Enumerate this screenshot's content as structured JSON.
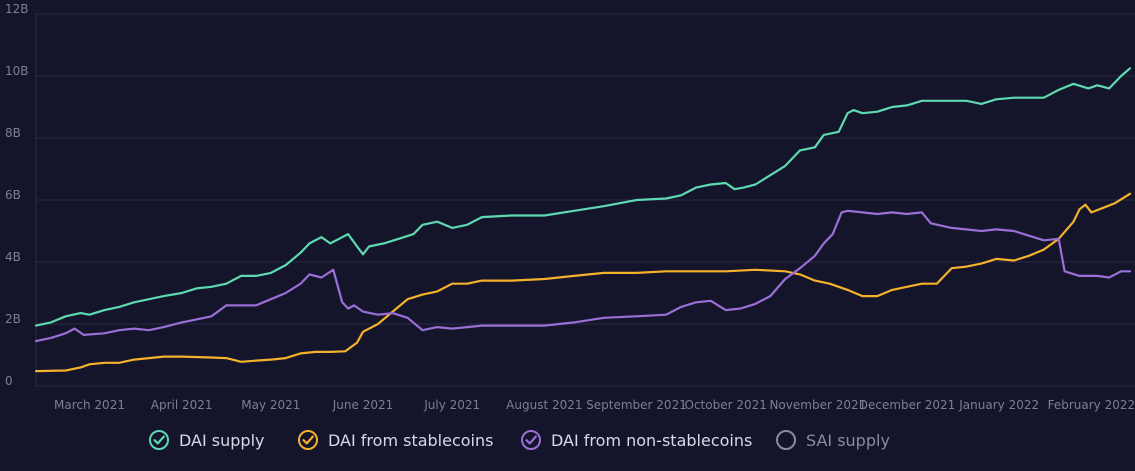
{
  "colors": {
    "background": "#14142b",
    "grid": "#2a2a45",
    "tick": "#7d7d96",
    "dai_supply": "#5fd9b0",
    "dai_stablecoins": "#f4b12c",
    "dai_nonstable": "#9a6fd6",
    "sai_supply": "#8a8aa0"
  },
  "chart_data": {
    "type": "line",
    "title": "",
    "xlabel": "",
    "ylabel": "",
    "x_range": [
      "2021-02-11",
      "2022-02-14"
    ],
    "ylim": [
      0,
      12
    ],
    "y_unit": "B",
    "y_ticks": [
      {
        "value": 0,
        "label": "0"
      },
      {
        "value": 2,
        "label": "2B"
      },
      {
        "value": 4,
        "label": "4B"
      },
      {
        "value": 6,
        "label": "6B"
      },
      {
        "value": 8,
        "label": "8B"
      },
      {
        "value": 10,
        "label": "10B"
      },
      {
        "value": 12,
        "label": "12B"
      }
    ],
    "x_ticks": [
      {
        "date": "2021-03-01",
        "label": "March 2021"
      },
      {
        "date": "2021-04-01",
        "label": "April 2021"
      },
      {
        "date": "2021-05-01",
        "label": "May 2021"
      },
      {
        "date": "2021-06-01",
        "label": "June 2021"
      },
      {
        "date": "2021-07-01",
        "label": "July 2021"
      },
      {
        "date": "2021-08-01",
        "label": "August 2021"
      },
      {
        "date": "2021-09-01",
        "label": "September 2021"
      },
      {
        "date": "2021-10-01",
        "label": "October 2021"
      },
      {
        "date": "2021-11-01",
        "label": "November 2021"
      },
      {
        "date": "2021-12-01",
        "label": "December 2021"
      },
      {
        "date": "2022-01-01",
        "label": "January 2022"
      },
      {
        "date": "2022-02-01",
        "label": "February 2022"
      }
    ],
    "series": [
      {
        "name": "DAI supply",
        "key": "dai_supply",
        "visible": true,
        "points": [
          [
            "2021-02-11",
            1.95
          ],
          [
            "2021-02-16",
            2.05
          ],
          [
            "2021-02-21",
            2.25
          ],
          [
            "2021-02-26",
            2.35
          ],
          [
            "2021-03-01",
            2.3
          ],
          [
            "2021-03-06",
            2.45
          ],
          [
            "2021-03-11",
            2.55
          ],
          [
            "2021-03-16",
            2.7
          ],
          [
            "2021-03-21",
            2.8
          ],
          [
            "2021-03-26",
            2.9
          ],
          [
            "2021-04-01",
            3.0
          ],
          [
            "2021-04-06",
            3.15
          ],
          [
            "2021-04-11",
            3.2
          ],
          [
            "2021-04-16",
            3.3
          ],
          [
            "2021-04-21",
            3.55
          ],
          [
            "2021-04-26",
            3.55
          ],
          [
            "2021-05-01",
            3.65
          ],
          [
            "2021-05-06",
            3.9
          ],
          [
            "2021-05-11",
            4.3
          ],
          [
            "2021-05-14",
            4.6
          ],
          [
            "2021-05-18",
            4.8
          ],
          [
            "2021-05-21",
            4.6
          ],
          [
            "2021-05-25",
            4.8
          ],
          [
            "2021-05-27",
            4.9
          ],
          [
            "2021-05-30",
            4.5
          ],
          [
            "2021-06-01",
            4.25
          ],
          [
            "2021-06-03",
            4.5
          ],
          [
            "2021-06-08",
            4.6
          ],
          [
            "2021-06-13",
            4.75
          ],
          [
            "2021-06-18",
            4.9
          ],
          [
            "2021-06-21",
            5.2
          ],
          [
            "2021-06-26",
            5.3
          ],
          [
            "2021-07-01",
            5.1
          ],
          [
            "2021-07-06",
            5.2
          ],
          [
            "2021-07-11",
            5.45
          ],
          [
            "2021-07-21",
            5.5
          ],
          [
            "2021-08-01",
            5.5
          ],
          [
            "2021-08-11",
            5.65
          ],
          [
            "2021-08-21",
            5.8
          ],
          [
            "2021-09-01",
            6.0
          ],
          [
            "2021-09-11",
            6.05
          ],
          [
            "2021-09-16",
            6.15
          ],
          [
            "2021-09-21",
            6.4
          ],
          [
            "2021-09-26",
            6.5
          ],
          [
            "2021-10-01",
            6.55
          ],
          [
            "2021-10-04",
            6.35
          ],
          [
            "2021-10-07",
            6.4
          ],
          [
            "2021-10-11",
            6.5
          ],
          [
            "2021-10-16",
            6.8
          ],
          [
            "2021-10-21",
            7.1
          ],
          [
            "2021-10-26",
            7.6
          ],
          [
            "2021-10-31",
            7.7
          ],
          [
            "2021-11-03",
            8.1
          ],
          [
            "2021-11-08",
            8.2
          ],
          [
            "2021-11-11",
            8.8
          ],
          [
            "2021-11-13",
            8.9
          ],
          [
            "2021-11-16",
            8.8
          ],
          [
            "2021-11-21",
            8.85
          ],
          [
            "2021-11-26",
            9.0
          ],
          [
            "2021-12-01",
            9.05
          ],
          [
            "2021-12-06",
            9.2
          ],
          [
            "2021-12-16",
            9.2
          ],
          [
            "2021-12-21",
            9.2
          ],
          [
            "2021-12-26",
            9.1
          ],
          [
            "2021-12-31",
            9.25
          ],
          [
            "2022-01-06",
            9.3
          ],
          [
            "2022-01-11",
            9.3
          ],
          [
            "2022-01-16",
            9.3
          ],
          [
            "2022-01-21",
            9.55
          ],
          [
            "2022-01-26",
            9.75
          ],
          [
            "2022-01-31",
            9.6
          ],
          [
            "2022-02-03",
            9.7
          ],
          [
            "2022-02-07",
            9.6
          ],
          [
            "2022-02-11",
            10.0
          ],
          [
            "2022-02-14",
            10.25
          ]
        ]
      },
      {
        "name": "DAI from stablecoins",
        "key": "dai_stablecoins",
        "visible": true,
        "points": [
          [
            "2021-02-11",
            0.48
          ],
          [
            "2021-02-21",
            0.5
          ],
          [
            "2021-02-26",
            0.6
          ],
          [
            "2021-03-01",
            0.7
          ],
          [
            "2021-03-06",
            0.75
          ],
          [
            "2021-03-11",
            0.75
          ],
          [
            "2021-03-16",
            0.85
          ],
          [
            "2021-03-21",
            0.9
          ],
          [
            "2021-03-26",
            0.95
          ],
          [
            "2021-04-01",
            0.95
          ],
          [
            "2021-04-11",
            0.92
          ],
          [
            "2021-04-16",
            0.9
          ],
          [
            "2021-04-21",
            0.78
          ],
          [
            "2021-04-26",
            0.82
          ],
          [
            "2021-05-01",
            0.85
          ],
          [
            "2021-05-06",
            0.9
          ],
          [
            "2021-05-11",
            1.05
          ],
          [
            "2021-05-16",
            1.1
          ],
          [
            "2021-05-21",
            1.1
          ],
          [
            "2021-05-26",
            1.12
          ],
          [
            "2021-05-30",
            1.4
          ],
          [
            "2021-06-01",
            1.75
          ],
          [
            "2021-06-06",
            2.0
          ],
          [
            "2021-06-11",
            2.4
          ],
          [
            "2021-06-16",
            2.8
          ],
          [
            "2021-06-21",
            2.95
          ],
          [
            "2021-06-26",
            3.05
          ],
          [
            "2021-07-01",
            3.3
          ],
          [
            "2021-07-06",
            3.3
          ],
          [
            "2021-07-11",
            3.4
          ],
          [
            "2021-07-21",
            3.4
          ],
          [
            "2021-08-01",
            3.45
          ],
          [
            "2021-08-11",
            3.55
          ],
          [
            "2021-08-21",
            3.65
          ],
          [
            "2021-09-01",
            3.65
          ],
          [
            "2021-09-11",
            3.7
          ],
          [
            "2021-09-21",
            3.7
          ],
          [
            "2021-10-01",
            3.7
          ],
          [
            "2021-10-11",
            3.75
          ],
          [
            "2021-10-21",
            3.7
          ],
          [
            "2021-10-26",
            3.6
          ],
          [
            "2021-10-31",
            3.4
          ],
          [
            "2021-11-05",
            3.3
          ],
          [
            "2021-11-11",
            3.1
          ],
          [
            "2021-11-16",
            2.9
          ],
          [
            "2021-11-21",
            2.9
          ],
          [
            "2021-11-26",
            3.1
          ],
          [
            "2021-12-01",
            3.2
          ],
          [
            "2021-12-06",
            3.3
          ],
          [
            "2021-12-11",
            3.3
          ],
          [
            "2021-12-16",
            3.8
          ],
          [
            "2021-12-21",
            3.85
          ],
          [
            "2021-12-26",
            3.95
          ],
          [
            "2021-12-31",
            4.1
          ],
          [
            "2022-01-06",
            4.05
          ],
          [
            "2022-01-11",
            4.2
          ],
          [
            "2022-01-16",
            4.4
          ],
          [
            "2022-01-21",
            4.75
          ],
          [
            "2022-01-26",
            5.3
          ],
          [
            "2022-01-28",
            5.7
          ],
          [
            "2022-01-30",
            5.85
          ],
          [
            "2022-02-01",
            5.6
          ],
          [
            "2022-02-05",
            5.75
          ],
          [
            "2022-02-09",
            5.9
          ],
          [
            "2022-02-14",
            6.2
          ]
        ]
      },
      {
        "name": "DAI from non-stablecoins",
        "key": "dai_nonstable",
        "visible": true,
        "points": [
          [
            "2021-02-11",
            1.45
          ],
          [
            "2021-02-16",
            1.55
          ],
          [
            "2021-02-21",
            1.7
          ],
          [
            "2021-02-24",
            1.85
          ],
          [
            "2021-02-27",
            1.65
          ],
          [
            "2021-03-06",
            1.7
          ],
          [
            "2021-03-11",
            1.8
          ],
          [
            "2021-03-16",
            1.85
          ],
          [
            "2021-03-21",
            1.8
          ],
          [
            "2021-03-26",
            1.9
          ],
          [
            "2021-04-01",
            2.05
          ],
          [
            "2021-04-06",
            2.15
          ],
          [
            "2021-04-11",
            2.25
          ],
          [
            "2021-04-16",
            2.6
          ],
          [
            "2021-04-21",
            2.6
          ],
          [
            "2021-04-26",
            2.6
          ],
          [
            "2021-05-01",
            2.8
          ],
          [
            "2021-05-06",
            3.0
          ],
          [
            "2021-05-11",
            3.3
          ],
          [
            "2021-05-14",
            3.6
          ],
          [
            "2021-05-18",
            3.5
          ],
          [
            "2021-05-22",
            3.75
          ],
          [
            "2021-05-25",
            2.7
          ],
          [
            "2021-05-27",
            2.5
          ],
          [
            "2021-05-29",
            2.6
          ],
          [
            "2021-06-01",
            2.4
          ],
          [
            "2021-06-06",
            2.3
          ],
          [
            "2021-06-11",
            2.35
          ],
          [
            "2021-06-16",
            2.2
          ],
          [
            "2021-06-21",
            1.8
          ],
          [
            "2021-06-26",
            1.9
          ],
          [
            "2021-07-01",
            1.85
          ],
          [
            "2021-07-11",
            1.95
          ],
          [
            "2021-07-21",
            1.95
          ],
          [
            "2021-08-01",
            1.95
          ],
          [
            "2021-08-11",
            2.05
          ],
          [
            "2021-08-21",
            2.2
          ],
          [
            "2021-09-01",
            2.25
          ],
          [
            "2021-09-11",
            2.3
          ],
          [
            "2021-09-16",
            2.55
          ],
          [
            "2021-09-21",
            2.7
          ],
          [
            "2021-09-26",
            2.75
          ],
          [
            "2021-10-01",
            2.45
          ],
          [
            "2021-10-06",
            2.5
          ],
          [
            "2021-10-11",
            2.65
          ],
          [
            "2021-10-16",
            2.9
          ],
          [
            "2021-10-21",
            3.45
          ],
          [
            "2021-10-26",
            3.8
          ],
          [
            "2021-10-31",
            4.2
          ],
          [
            "2021-11-03",
            4.6
          ],
          [
            "2021-11-06",
            4.9
          ],
          [
            "2021-11-09",
            5.6
          ],
          [
            "2021-11-11",
            5.65
          ],
          [
            "2021-11-16",
            5.6
          ],
          [
            "2021-11-21",
            5.55
          ],
          [
            "2021-11-26",
            5.6
          ],
          [
            "2021-12-01",
            5.55
          ],
          [
            "2021-12-06",
            5.6
          ],
          [
            "2021-12-09",
            5.25
          ],
          [
            "2021-12-16",
            5.1
          ],
          [
            "2021-12-26",
            5.0
          ],
          [
            "2021-12-31",
            5.05
          ],
          [
            "2022-01-06",
            5.0
          ],
          [
            "2022-01-11",
            4.85
          ],
          [
            "2022-01-16",
            4.7
          ],
          [
            "2022-01-21",
            4.75
          ],
          [
            "2022-01-23",
            3.7
          ],
          [
            "2022-01-28",
            3.55
          ],
          [
            "2022-02-03",
            3.55
          ],
          [
            "2022-02-07",
            3.5
          ],
          [
            "2022-02-11",
            3.7
          ],
          [
            "2022-02-14",
            3.7
          ]
        ]
      }
    ]
  },
  "legend": {
    "items": [
      {
        "label": "DAI supply",
        "key": "dai_supply",
        "checked": true
      },
      {
        "label": "DAI from stablecoins",
        "key": "dai_stablecoins",
        "checked": true
      },
      {
        "label": "DAI from non-stablecoins",
        "key": "dai_nonstable",
        "checked": true
      },
      {
        "label": "SAI supply",
        "key": "sai_supply",
        "checked": false
      }
    ]
  }
}
